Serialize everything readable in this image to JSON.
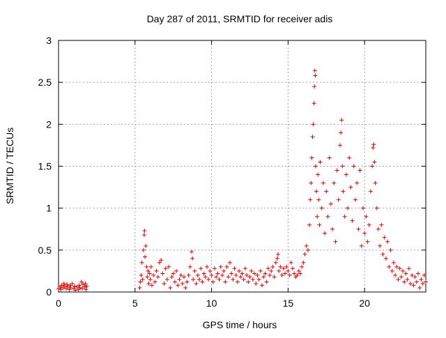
{
  "chart_data": {
    "type": "scatter",
    "title": "Day 287 of 2011, SRMTID for receiver adis",
    "xlabel": "GPS time / hours",
    "ylabel": "SRMTID / TECUs",
    "xlim": [
      0,
      24
    ],
    "ylim": [
      0,
      3
    ],
    "xticks": [
      0,
      5,
      10,
      15,
      20
    ],
    "yticks": [
      0,
      0.5,
      1,
      1.5,
      2,
      2.5,
      3
    ],
    "grid": true,
    "marker": "+",
    "color": "#e00000",
    "series": [
      {
        "name": "SRMTID",
        "points": [
          [
            0.0,
            0.04
          ],
          [
            0.1,
            0.06
          ],
          [
            0.15,
            0.03
          ],
          [
            0.2,
            0.08
          ],
          [
            0.3,
            0.05
          ],
          [
            0.35,
            0.1
          ],
          [
            0.4,
            0.07
          ],
          [
            0.5,
            0.04
          ],
          [
            0.55,
            0.09
          ],
          [
            0.6,
            0.06
          ],
          [
            0.7,
            0.03
          ],
          [
            0.75,
            0.08
          ],
          [
            0.8,
            0.05
          ],
          [
            0.9,
            0.1
          ],
          [
            1.0,
            0.04
          ],
          [
            1.05,
            0.07
          ],
          [
            1.1,
            0.02
          ],
          [
            1.2,
            0.06
          ],
          [
            1.3,
            0.03
          ],
          [
            1.35,
            0.08
          ],
          [
            1.4,
            0.05
          ],
          [
            1.5,
            0.12
          ],
          [
            1.55,
            0.04
          ],
          [
            1.6,
            0.09
          ],
          [
            1.7,
            0.06
          ],
          [
            1.75,
            0.1
          ],
          [
            1.8,
            0.03
          ],
          [
            1.85,
            0.07
          ],
          [
            5.3,
            0.05
          ],
          [
            5.35,
            0.12
          ],
          [
            5.4,
            0.2
          ],
          [
            5.45,
            0.35
          ],
          [
            5.5,
            0.15
          ],
          [
            5.55,
            0.5
          ],
          [
            5.6,
            0.68
          ],
          [
            5.62,
            0.73
          ],
          [
            5.65,
            0.42
          ],
          [
            5.7,
            0.55
          ],
          [
            5.75,
            0.3
          ],
          [
            5.8,
            0.18
          ],
          [
            5.85,
            0.25
          ],
          [
            5.9,
            0.1
          ],
          [
            5.95,
            0.22
          ],
          [
            6.0,
            0.15
          ],
          [
            6.05,
            0.3
          ],
          [
            6.1,
            0.08
          ],
          [
            6.2,
            0.2
          ],
          [
            6.3,
            0.12
          ],
          [
            6.4,
            0.25
          ],
          [
            6.5,
            0.18
          ],
          [
            6.6,
            0.35
          ],
          [
            6.7,
            0.38
          ],
          [
            6.8,
            0.22
          ],
          [
            6.9,
            0.1
          ],
          [
            7.0,
            0.28
          ],
          [
            7.1,
            0.15
          ],
          [
            7.2,
            0.3
          ],
          [
            7.3,
            0.05
          ],
          [
            7.4,
            0.18
          ],
          [
            7.5,
            0.22
          ],
          [
            7.6,
            0.12
          ],
          [
            7.7,
            0.25
          ],
          [
            7.8,
            0.08
          ],
          [
            7.9,
            0.15
          ],
          [
            8.0,
            0.2
          ],
          [
            8.1,
            0.1
          ],
          [
            8.2,
            0.18
          ],
          [
            8.3,
            0.05
          ],
          [
            8.4,
            0.12
          ],
          [
            8.5,
            0.2
          ],
          [
            8.6,
            0.3
          ],
          [
            8.7,
            0.48
          ],
          [
            8.75,
            0.4
          ],
          [
            8.8,
            0.15
          ],
          [
            8.9,
            0.25
          ],
          [
            9.0,
            0.1
          ],
          [
            9.1,
            0.2
          ],
          [
            9.2,
            0.15
          ],
          [
            9.3,
            0.28
          ],
          [
            9.4,
            0.12
          ],
          [
            9.5,
            0.22
          ],
          [
            9.6,
            0.18
          ],
          [
            9.7,
            0.3
          ],
          [
            9.8,
            0.15
          ],
          [
            9.9,
            0.25
          ],
          [
            10.0,
            0.2
          ],
          [
            10.1,
            0.12
          ],
          [
            10.2,
            0.28
          ],
          [
            10.3,
            0.18
          ],
          [
            10.4,
            0.22
          ],
          [
            10.5,
            0.15
          ],
          [
            10.6,
            0.3
          ],
          [
            10.7,
            0.2
          ],
          [
            10.8,
            0.25
          ],
          [
            10.9,
            0.12
          ],
          [
            11.0,
            0.3
          ],
          [
            11.1,
            0.18
          ],
          [
            11.2,
            0.35
          ],
          [
            11.3,
            0.22
          ],
          [
            11.4,
            0.15
          ],
          [
            11.5,
            0.28
          ],
          [
            11.6,
            0.2
          ],
          [
            11.7,
            0.12
          ],
          [
            11.8,
            0.25
          ],
          [
            11.9,
            0.18
          ],
          [
            12.0,
            0.22
          ],
          [
            12.1,
            0.15
          ],
          [
            12.2,
            0.28
          ],
          [
            12.3,
            0.2
          ],
          [
            12.4,
            0.12
          ],
          [
            12.5,
            0.18
          ],
          [
            12.6,
            0.25
          ],
          [
            12.7,
            0.15
          ],
          [
            12.8,
            0.22
          ],
          [
            12.9,
            0.1
          ],
          [
            13.0,
            0.2
          ],
          [
            13.1,
            0.15
          ],
          [
            13.2,
            0.25
          ],
          [
            13.3,
            0.08
          ],
          [
            13.4,
            0.18
          ],
          [
            13.5,
            0.22
          ],
          [
            13.6,
            0.12
          ],
          [
            13.7,
            0.28
          ],
          [
            13.8,
            0.2
          ],
          [
            13.9,
            0.25
          ],
          [
            14.0,
            0.3
          ],
          [
            14.1,
            0.18
          ],
          [
            14.2,
            0.35
          ],
          [
            14.3,
            0.4
          ],
          [
            14.35,
            0.45
          ],
          [
            14.4,
            0.25
          ],
          [
            14.5,
            0.3
          ],
          [
            14.6,
            0.2
          ],
          [
            14.7,
            0.28
          ],
          [
            14.8,
            0.22
          ],
          [
            14.9,
            0.3
          ],
          [
            15.0,
            0.25
          ],
          [
            15.1,
            0.2
          ],
          [
            15.2,
            0.35
          ],
          [
            15.3,
            0.28
          ],
          [
            15.4,
            0.22
          ],
          [
            15.5,
            0.18
          ],
          [
            15.6,
            0.2
          ],
          [
            15.7,
            0.25
          ],
          [
            15.8,
            0.22
          ],
          [
            15.9,
            0.3
          ],
          [
            16.0,
            0.35
          ],
          [
            16.1,
            0.45
          ],
          [
            16.2,
            0.55
          ],
          [
            16.3,
            0.5
          ],
          [
            16.4,
            0.8
          ],
          [
            16.45,
            1.1
          ],
          [
            16.5,
            1.3
          ],
          [
            16.55,
            1.6
          ],
          [
            16.6,
            1.85
          ],
          [
            16.65,
            2.0
          ],
          [
            16.7,
            2.25
          ],
          [
            16.72,
            2.45
          ],
          [
            16.75,
            2.64
          ],
          [
            16.78,
            2.58
          ],
          [
            16.8,
            1.5
          ],
          [
            16.85,
            1.2
          ],
          [
            16.9,
            0.9
          ],
          [
            16.95,
            1.4
          ],
          [
            17.0,
            1.1
          ],
          [
            17.05,
            0.8
          ],
          [
            17.1,
            1.55
          ],
          [
            17.2,
            1.0
          ],
          [
            17.3,
            1.3
          ],
          [
            17.4,
            0.7
          ],
          [
            17.5,
            1.2
          ],
          [
            17.6,
            0.9
          ],
          [
            17.7,
            1.6
          ],
          [
            17.8,
            1.05
          ],
          [
            17.9,
            0.75
          ],
          [
            18.0,
            1.3
          ],
          [
            18.1,
            0.6
          ],
          [
            18.2,
            1.45
          ],
          [
            18.3,
            1.1
          ],
          [
            18.4,
            1.75
          ],
          [
            18.45,
            1.9
          ],
          [
            18.5,
            2.05
          ],
          [
            18.55,
            1.5
          ],
          [
            18.6,
            1.2
          ],
          [
            18.7,
            0.9
          ],
          [
            18.8,
            1.4
          ],
          [
            18.9,
            1.0
          ],
          [
            19.0,
            1.6
          ],
          [
            19.1,
            1.25
          ],
          [
            19.2,
            0.85
          ],
          [
            19.3,
            1.5
          ],
          [
            19.4,
            1.1
          ],
          [
            19.5,
            1.3
          ],
          [
            19.6,
            0.75
          ],
          [
            19.7,
            1.45
          ],
          [
            19.8,
            0.55
          ],
          [
            19.9,
            1.0
          ],
          [
            20.0,
            0.7
          ],
          [
            20.1,
            0.9
          ],
          [
            20.2,
            0.6
          ],
          [
            20.3,
            0.8
          ],
          [
            20.4,
            1.2
          ],
          [
            20.5,
            1.5
          ],
          [
            20.55,
            1.72
          ],
          [
            20.6,
            1.76
          ],
          [
            20.65,
            1.55
          ],
          [
            20.7,
            1.3
          ],
          [
            20.8,
            1.0
          ],
          [
            20.9,
            0.75
          ],
          [
            21.0,
            0.55
          ],
          [
            21.1,
            0.8
          ],
          [
            21.2,
            0.45
          ],
          [
            21.3,
            0.65
          ],
          [
            21.4,
            0.4
          ],
          [
            21.5,
            0.6
          ],
          [
            21.6,
            0.3
          ],
          [
            21.7,
            0.5
          ],
          [
            21.8,
            0.25
          ],
          [
            21.9,
            0.35
          ],
          [
            22.0,
            0.2
          ],
          [
            22.1,
            0.3
          ],
          [
            22.2,
            0.15
          ],
          [
            22.3,
            0.28
          ],
          [
            22.4,
            0.18
          ],
          [
            22.5,
            0.25
          ],
          [
            22.6,
            0.12
          ],
          [
            22.7,
            0.22
          ],
          [
            22.8,
            0.15
          ],
          [
            22.9,
            0.28
          ],
          [
            23.0,
            0.1
          ],
          [
            23.1,
            0.2
          ],
          [
            23.2,
            0.08
          ],
          [
            23.3,
            0.18
          ],
          [
            23.4,
            0.12
          ],
          [
            23.5,
            0.22
          ],
          [
            23.6,
            0.05
          ],
          [
            23.7,
            0.15
          ],
          [
            23.8,
            0.1
          ],
          [
            23.9,
            0.2
          ],
          [
            24.0,
            0.12
          ]
        ]
      }
    ]
  }
}
